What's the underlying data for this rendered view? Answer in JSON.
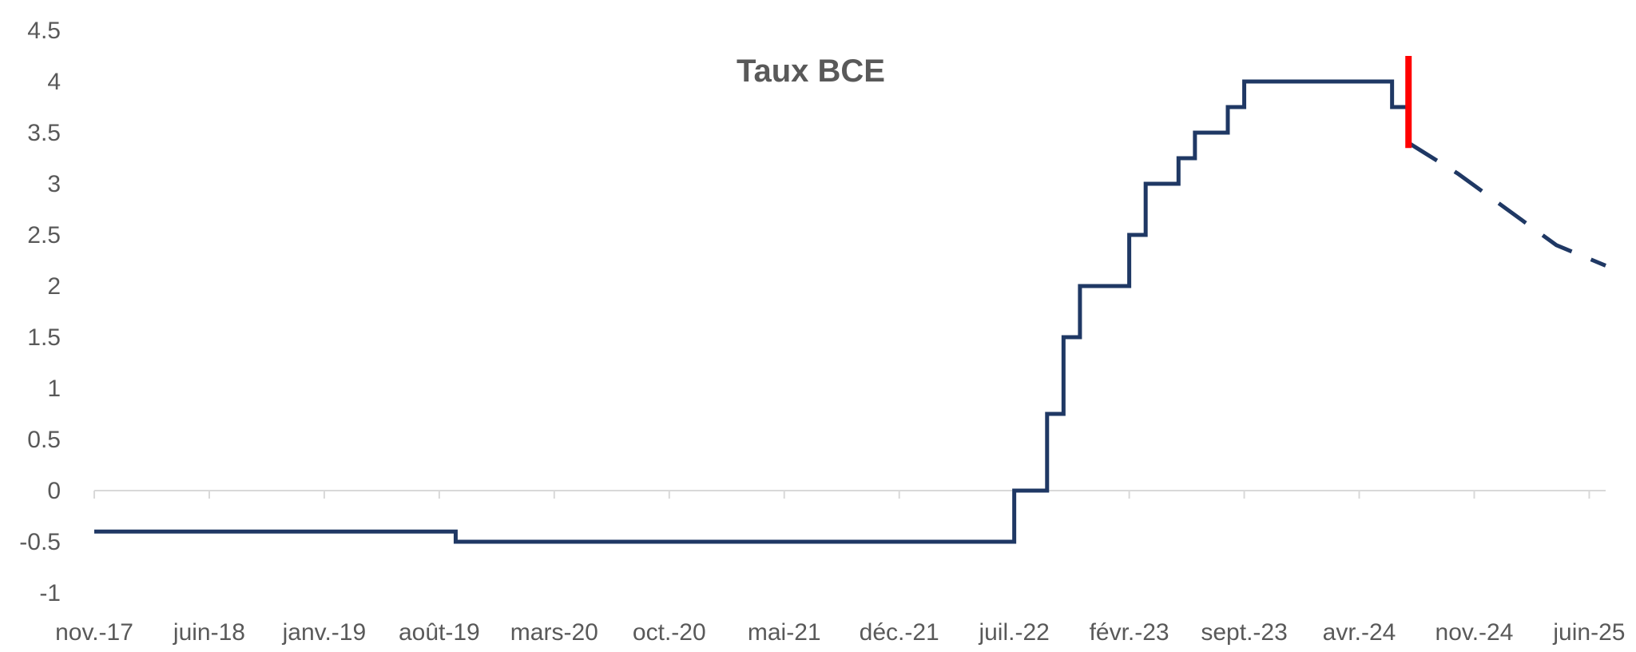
{
  "chart_data": {
    "type": "line",
    "title": "Taux BCE",
    "xlabel": "",
    "ylabel": "",
    "ylim": [
      -1,
      4.5
    ],
    "yticks": [
      "4.5",
      "4",
      "3.5",
      "3",
      "2.5",
      "2",
      "1.5",
      "1",
      "0.5",
      "0",
      "-0.5",
      "-1"
    ],
    "ytick_values": [
      4.5,
      4,
      3.5,
      3,
      2.5,
      2,
      1.5,
      1,
      0.5,
      0,
      -0.5,
      -1
    ],
    "xticks": [
      "nov.-17",
      "juin-18",
      "janv.-19",
      "août-19",
      "mars-20",
      "oct.-20",
      "mai-21",
      "déc.-21",
      "juil.-22",
      "févr.-23",
      "sept.-23",
      "avr.-24",
      "nov.-24",
      "juin-25"
    ],
    "xtick_dates": [
      "2017-11",
      "2018-06",
      "2019-01",
      "2019-08",
      "2020-03",
      "2020-10",
      "2021-05",
      "2021-12",
      "2022-07",
      "2023-02",
      "2023-09",
      "2024-04",
      "2024-11",
      "2025-06"
    ],
    "x_range": [
      "2017-11",
      "2025-07"
    ],
    "grid": false,
    "legend": "none",
    "series": [
      {
        "style": "solid-step",
        "color": "#1F3864",
        "points": [
          [
            "2017-11",
            -0.4
          ],
          [
            "2019-09",
            -0.5
          ],
          [
            "2022-07",
            0
          ],
          [
            "2022-09",
            0.75
          ],
          [
            "2022-10",
            1.5
          ],
          [
            "2022-11",
            2.0
          ],
          [
            "2023-02",
            2.5
          ],
          [
            "2023-03",
            3.0
          ],
          [
            "2023-05",
            3.25
          ],
          [
            "2023-06",
            3.5
          ],
          [
            "2023-08",
            3.75
          ],
          [
            "2023-09",
            4.0
          ],
          [
            "2024-06",
            3.75
          ],
          [
            "2024-07",
            3.75
          ]
        ]
      },
      {
        "style": "dashed",
        "color": "#1F3864",
        "points": [
          [
            "2024-07",
            3.4
          ],
          [
            "2024-10",
            3.1
          ],
          [
            "2025-01",
            2.75
          ],
          [
            "2025-04",
            2.4
          ],
          [
            "2025-07",
            2.2
          ]
        ]
      }
    ],
    "marker": {
      "date": "2024-07",
      "y_from": 3.35,
      "y_to": 4.25,
      "color": "#FF0000"
    }
  }
}
